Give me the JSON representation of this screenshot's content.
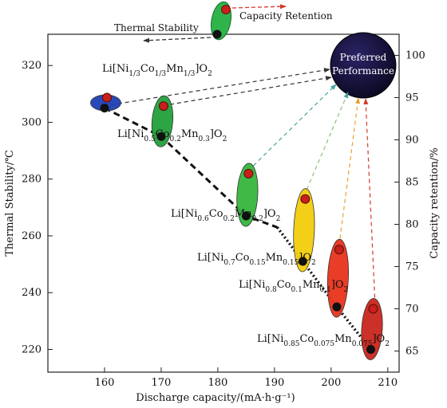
{
  "chart_data": {
    "type": "scatter",
    "xlabel": "Discharge capacity/(mA·h·g⁻¹)",
    "ylabel_left": "Thermal Stability/℃",
    "ylabel_right": "Capacity retention/%",
    "xlim": [
      150,
      212
    ],
    "ylim_left": [
      212,
      331
    ],
    "ylim_right": [
      62.5,
      102.5
    ],
    "x_ticks": [
      "160",
      "170",
      "180",
      "190",
      "200",
      "210"
    ],
    "y_left_ticks": [
      "220",
      "240",
      "260",
      "280",
      "300",
      "320"
    ],
    "y_right_ticks": [
      "65",
      "70",
      "75",
      "80",
      "85",
      "90",
      "95",
      "100"
    ],
    "legend": {
      "thermal": "Thermal Stability",
      "capacity": "Capacity Retention"
    },
    "preferred": "Preferred Performance",
    "materials": [
      {
        "name": "Li[Ni1/3Co1/3Mn1/3]O2",
        "color": "#1e3fb4",
        "capacity": 160,
        "thermal": 305,
        "retention": 95
      },
      {
        "name": "Li[Ni0.5Co0.2Mn0.3]O2",
        "color": "#23a03a",
        "capacity": 170,
        "thermal": 295,
        "retention": 94
      },
      {
        "name": "Li[Ni0.6Co0.2Mn0.2]O2",
        "color": "#36b53d",
        "capacity": 185,
        "thermal": 267,
        "retention": 86
      },
      {
        "name": "Li[Ni0.7Co0.15Mn0.15]O2",
        "color": "#f2cc0c",
        "capacity": 195,
        "thermal": 251,
        "retention": 83
      },
      {
        "name": "Li[Ni0.8Co0.1Mn0.1]O2",
        "color": "#e8331c",
        "capacity": 201,
        "thermal": 235,
        "retention": 77
      },
      {
        "name": "Li[Ni0.85Co0.075Mn0.075]O2",
        "color": "#c8261c",
        "capacity": 207,
        "thermal": 220,
        "retention": 70
      }
    ]
  }
}
